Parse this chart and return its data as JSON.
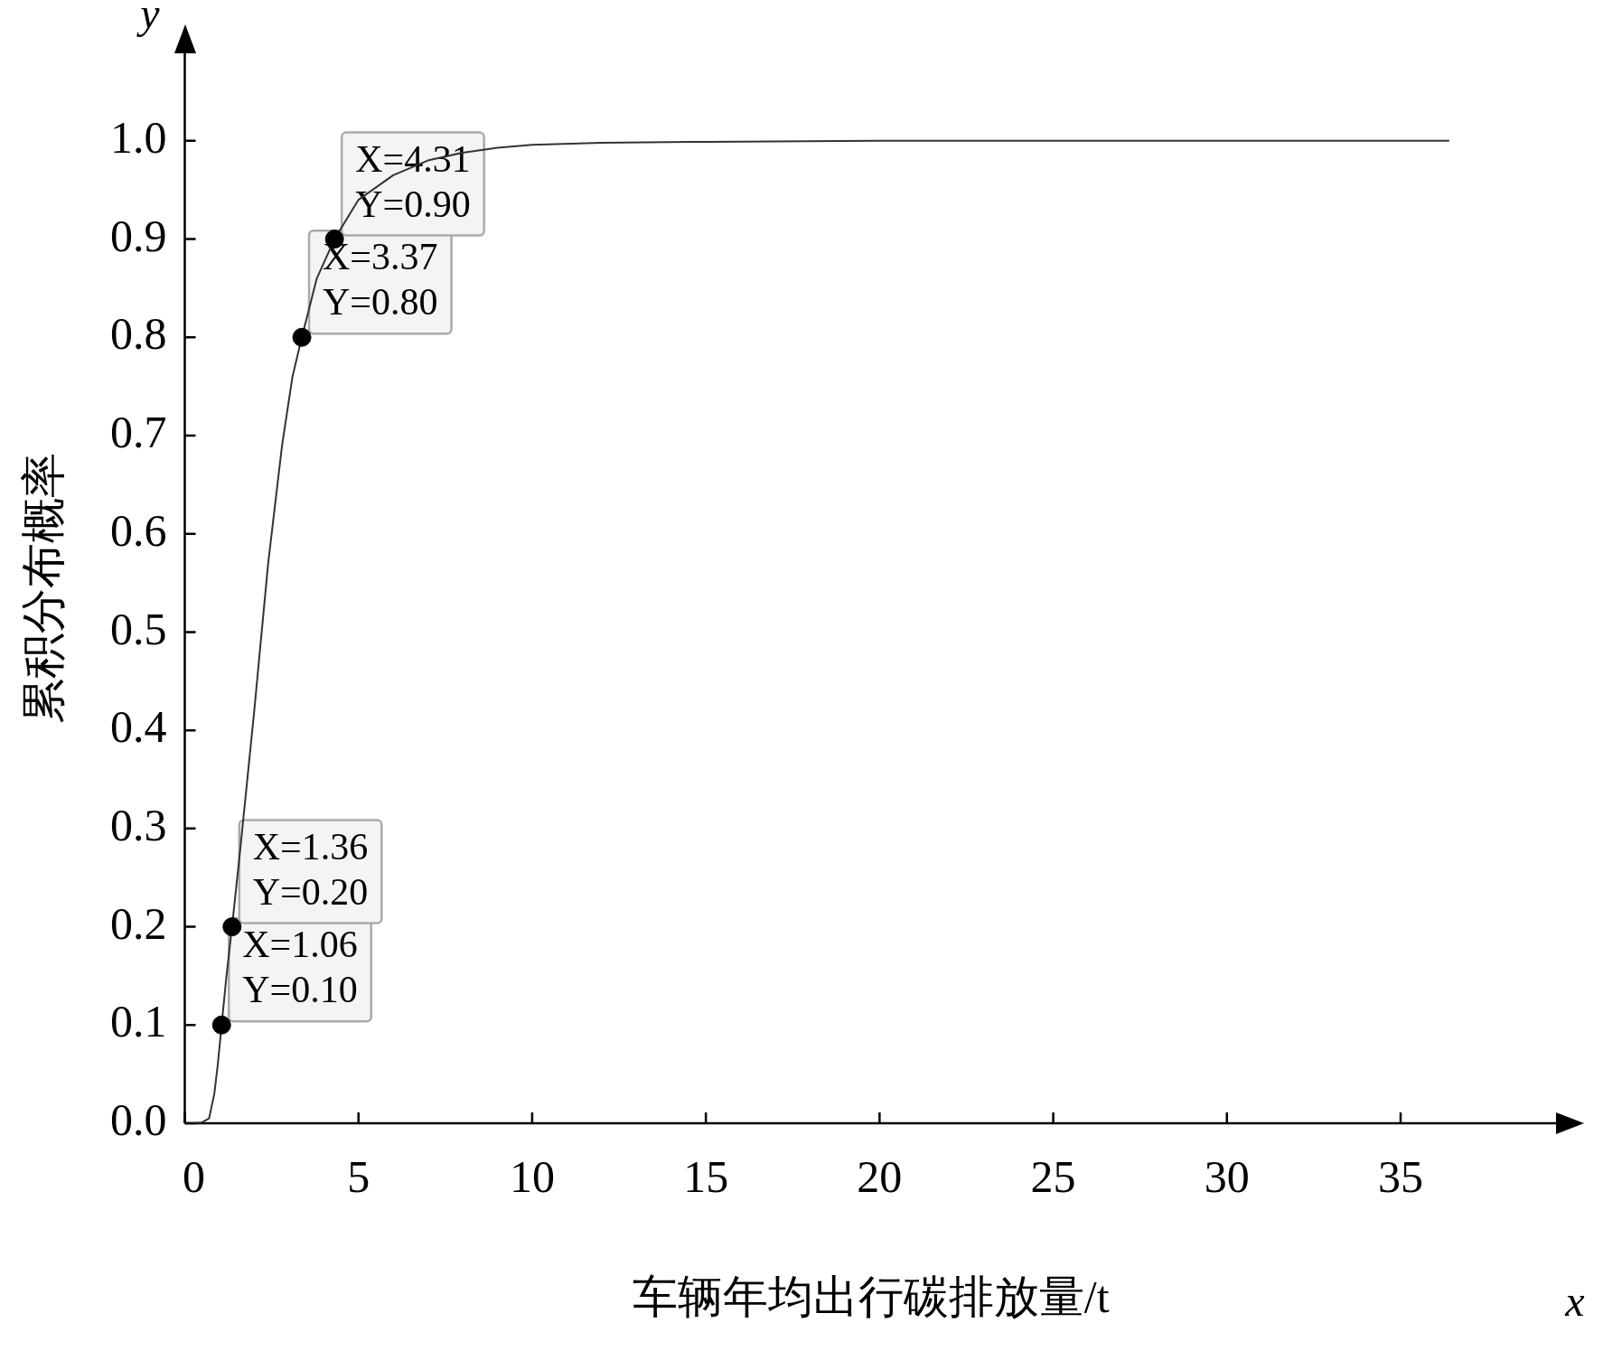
{
  "chart_data": {
    "type": "line",
    "xlabel": "车辆年均出行碳排放量/t",
    "ylabel": "累积分布概率",
    "xlim": [
      0,
      39.5
    ],
    "xticks": [
      0,
      5,
      10,
      15,
      20,
      25,
      30,
      35
    ],
    "ylim": [
      0,
      1.09
    ],
    "yticks": [
      {
        "value": 0,
        "label": "0.0"
      },
      {
        "value": 0.1,
        "label": "0.1"
      },
      {
        "value": 0.2,
        "label": "0.2"
      },
      {
        "value": 0.3,
        "label": "0.3"
      },
      {
        "value": 0.4,
        "label": "0.4"
      },
      {
        "value": 0.5,
        "label": "0.5"
      },
      {
        "value": 0.6,
        "label": "0.6"
      },
      {
        "value": 0.7,
        "label": "0.7"
      },
      {
        "value": 0.8,
        "label": "0.8"
      },
      {
        "value": 0.9,
        "label": "0.9"
      },
      {
        "value": 1.0,
        "label": "1.0"
      }
    ],
    "grid": false,
    "legend": false,
    "series": [
      {
        "type": "line",
        "color": "#333333",
        "marker": "none",
        "x": [
          0.2,
          0.5,
          0.7,
          0.85,
          0.95,
          1.06,
          1.2,
          1.36,
          1.6,
          2.0,
          2.4,
          2.8,
          3.1,
          3.37,
          3.8,
          4.31,
          5,
          6,
          7,
          8,
          9,
          10,
          12,
          15,
          20,
          30,
          36.4
        ],
        "values": [
          0,
          0.001,
          0.005,
          0.03,
          0.06,
          0.1,
          0.15,
          0.2,
          0.28,
          0.42,
          0.57,
          0.69,
          0.76,
          0.8,
          0.86,
          0.9,
          0.94,
          0.965,
          0.98,
          0.988,
          0.993,
          0.996,
          0.998,
          0.999,
          1.0,
          1.0,
          1.0
        ]
      },
      {
        "type": "scatter",
        "color": "#000000",
        "marker": "circle",
        "x": [
          1.06,
          1.36,
          3.37,
          4.31
        ],
        "values": [
          0.1,
          0.2,
          0.8,
          0.9
        ]
      }
    ],
    "annotations": [
      "x",
      "y",
      {
        "text": "X=1.06\nY=0.10",
        "x": 1.06,
        "y": 0.1
      },
      {
        "text": "X=1.36\nY=0.20",
        "x": 1.36,
        "y": 0.2
      },
      {
        "text": "X=3.37\nY=0.80",
        "x": 3.37,
        "y": 0.8
      },
      {
        "text": "X=4.31\nY=0.90",
        "x": 4.31,
        "y": 0.9
      }
    ]
  }
}
